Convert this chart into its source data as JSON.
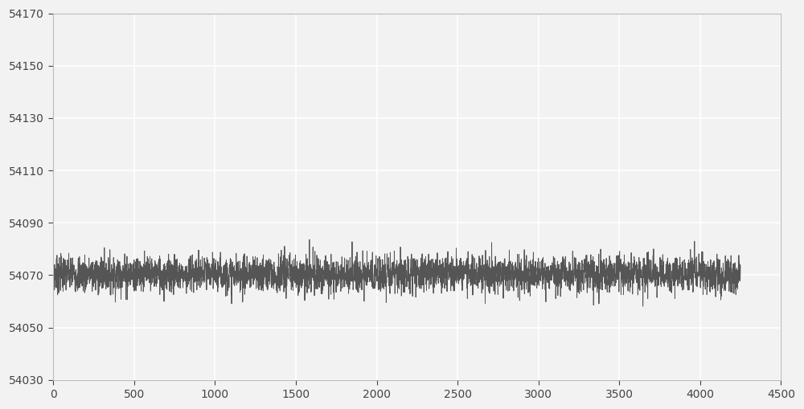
{
  "x_min": 0,
  "x_max": 4500,
  "y_min": 54030,
  "y_max": 54170,
  "x_ticks": [
    0,
    500,
    1000,
    1500,
    2000,
    2500,
    3000,
    3500,
    4000,
    4500
  ],
  "y_ticks": [
    54030,
    54050,
    54070,
    54090,
    54110,
    54130,
    54150,
    54170
  ],
  "signal_mean": 54070.5,
  "signal_std": 3.5,
  "signal_n_points": 4250,
  "line_color": "#555555",
  "line_width": 0.7,
  "background_color": "#f2f2f2",
  "plot_bg_color": "#f2f2f2",
  "grid_color": "#ffffff",
  "grid_linewidth": 1.2,
  "tick_color": "#444444",
  "tick_labelsize": 10,
  "seed": 7
}
